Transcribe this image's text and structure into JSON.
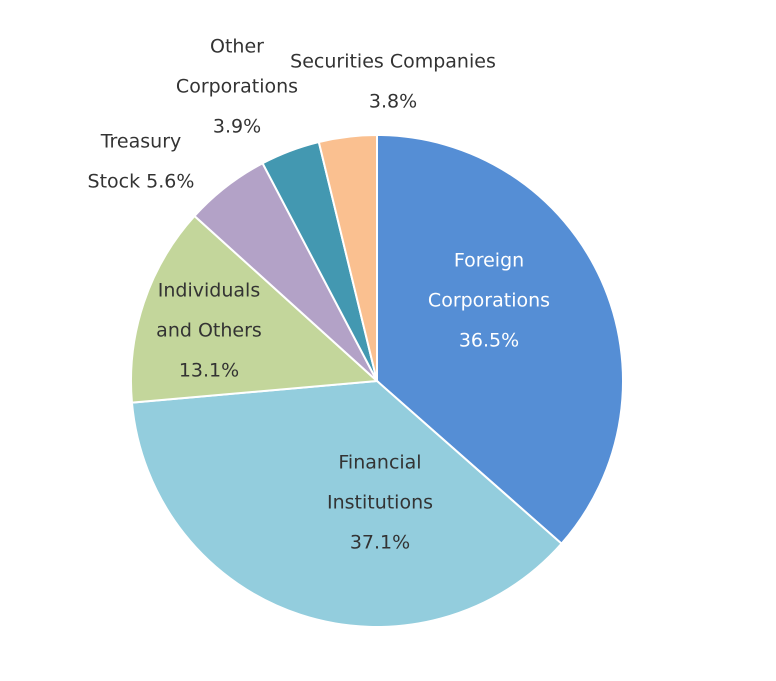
{
  "chart_data": {
    "type": "pie",
    "start_angle_deg": 0,
    "direction": "clockwise",
    "slices": [
      {
        "name": "Foreign Corporations",
        "value": 36.5,
        "color": "#558ed5",
        "label_lines": [
          "Foreign",
          "Corporations",
          "36.5%"
        ],
        "label_color": "#ffffff"
      },
      {
        "name": "Financial Institutions",
        "value": 37.1,
        "color": "#93cddd",
        "label_lines": [
          "Financial",
          "Institutions",
          "37.1%"
        ],
        "label_color": "#333333"
      },
      {
        "name": "Individuals and Others",
        "value": 13.1,
        "color": "#c3d69b",
        "label_lines": [
          "Individuals",
          "and Others",
          "13.1%"
        ],
        "label_color": "#333333"
      },
      {
        "name": "Treasury Stock",
        "value": 5.6,
        "color": "#b3a2c7",
        "label_lines": [
          "Treasury",
          "Stock 5.6%"
        ],
        "label_color": "#333333"
      },
      {
        "name": "Other Corporations",
        "value": 3.9,
        "color": "#4398b1",
        "label_lines": [
          "Other",
          "Corporations",
          "3.9%"
        ],
        "label_color": "#333333"
      },
      {
        "name": "Securities Companies",
        "value": 3.8,
        "color": "#fac090",
        "label_lines": [
          "Securities Companies",
          "3.8%"
        ],
        "label_color": "#333333"
      }
    ]
  }
}
